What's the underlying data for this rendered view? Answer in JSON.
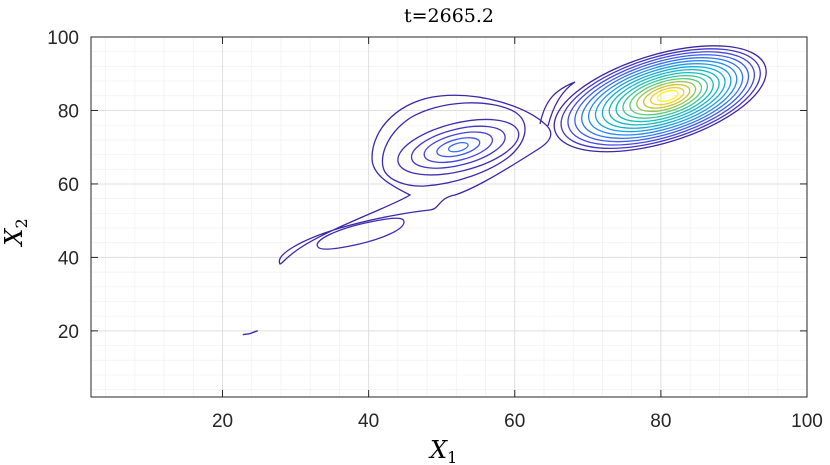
{
  "chart_data": {
    "type": "contour",
    "title": "t=2665.2",
    "xlabel": {
      "base": "X",
      "sub": "1"
    },
    "ylabel": {
      "base": "X",
      "sub": "2"
    },
    "xlim": [
      2,
      100
    ],
    "ylim": [
      2,
      100
    ],
    "xticks": [
      20,
      40,
      60,
      80,
      100
    ],
    "yticks": [
      20,
      40,
      60,
      80,
      100
    ],
    "xtick_labels": [
      "20",
      "40",
      "60",
      "80",
      "100"
    ],
    "ytick_labels": [
      "20",
      "40",
      "60",
      "80",
      "100"
    ],
    "grid": true,
    "minor_grid": true,
    "colormap": "parula",
    "colors": {
      "low": "#3e26a8",
      "mid": "#17beb8",
      "high": "#f9fb15"
    },
    "peaks": [
      {
        "x": 81,
        "y": 84,
        "relative_level": 1.0
      },
      {
        "x": 52,
        "y": 70,
        "relative_level": 0.15
      },
      {
        "x": 37,
        "y": 43,
        "relative_level": 0.05
      },
      {
        "x": 24,
        "y": 19.5,
        "relative_level": 0.02
      }
    ]
  }
}
